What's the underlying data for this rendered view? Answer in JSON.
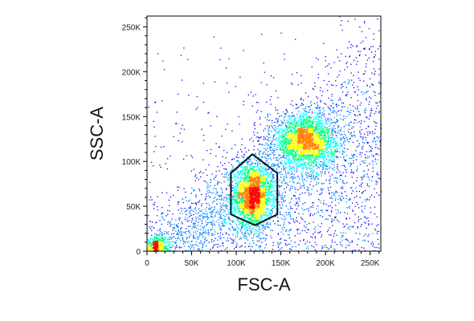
{
  "chart_data": {
    "type": "scatter",
    "subtype": "flow-cytometry density dot plot",
    "xlabel": "FSC-A",
    "ylabel": "SSC-A",
    "xlim": [
      0,
      262000
    ],
    "ylim": [
      0,
      262000
    ],
    "x_ticks": [
      {
        "value": 0,
        "label": "0"
      },
      {
        "value": 50000,
        "label": "50K"
      },
      {
        "value": 100000,
        "label": "100K"
      },
      {
        "value": 150000,
        "label": "150K"
      },
      {
        "value": 200000,
        "label": "200K"
      },
      {
        "value": 250000,
        "label": "250K"
      }
    ],
    "y_ticks": [
      {
        "value": 0,
        "label": "0"
      },
      {
        "value": 50000,
        "label": "50K"
      },
      {
        "value": 100000,
        "label": "100K"
      },
      {
        "value": 150000,
        "label": "150K"
      },
      {
        "value": 200000,
        "label": "200K"
      },
      {
        "value": 250000,
        "label": "250K"
      }
    ],
    "populations": [
      {
        "center": [
          118000,
          62000
        ],
        "spread": [
          11000,
          18000
        ],
        "density": "high",
        "color": "#ff2000"
      },
      {
        "center": [
          177000,
          123000
        ],
        "spread": [
          17000,
          15000
        ],
        "density": "medium",
        "color": "#a0e000"
      },
      {
        "center": [
          10000,
          6000
        ],
        "spread": [
          7000,
          6000
        ],
        "density": "medium",
        "color": "#00d0a0"
      }
    ],
    "gate": {
      "shape": "hexagon",
      "vertices": [
        [
          118000,
          108000
        ],
        [
          146000,
          87000
        ],
        [
          146000,
          41000
        ],
        [
          121000,
          29000
        ],
        [
          94000,
          41000
        ],
        [
          94000,
          87000
        ]
      ]
    },
    "colormap": [
      "#0000ff",
      "#0080ff",
      "#00ffff",
      "#00ff80",
      "#ffff00",
      "#ff8000",
      "#ff0000"
    ],
    "grid": false
  }
}
